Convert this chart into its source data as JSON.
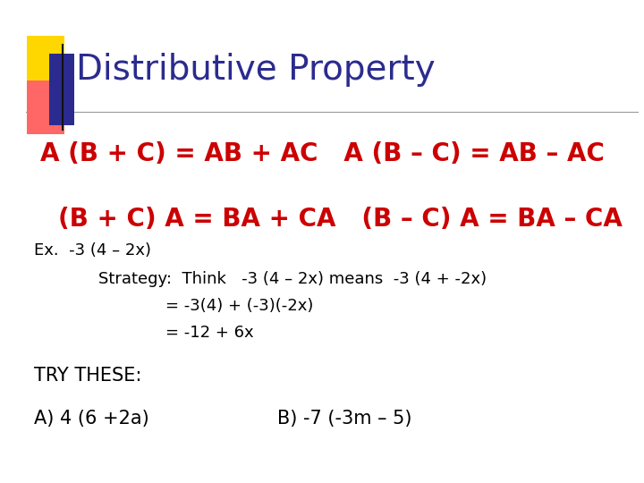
{
  "title": "Distributive Property",
  "title_color": "#2B2B8F",
  "title_fontsize": 28,
  "background_color": "#FFFFFF",
  "line1": "A (B + C) = AB + AC   A (B – C) = AB – AC",
  "line1_color": "#CC0000",
  "line1_fontsize": 20,
  "line2": "(B + C) A = BA + CA   (B – C) A = BA – CA",
  "line2_color": "#CC0000",
  "line2_fontsize": 20,
  "line3": "Ex.  -3 (4 – 2x)",
  "line3_color": "#000000",
  "line3_fontsize": 13,
  "line4": "Strategy:  Think   -3 (4 – 2x) means  -3 (4 + -2x)",
  "line4_color": "#000000",
  "line4_fontsize": 13,
  "line5": "= -3(4) + (-3)(-2x)",
  "line5_color": "#000000",
  "line5_fontsize": 13,
  "line6": "= -12 + 6x",
  "line6_color": "#000000",
  "line6_fontsize": 13,
  "line7": "TRY THESE:",
  "line7_color": "#000000",
  "line7_fontsize": 15,
  "line8a": "A) 4 (6 +2a)",
  "line8b": "B) -7 (-3m – 5)",
  "line8_color": "#000000",
  "line8_fontsize": 15
}
